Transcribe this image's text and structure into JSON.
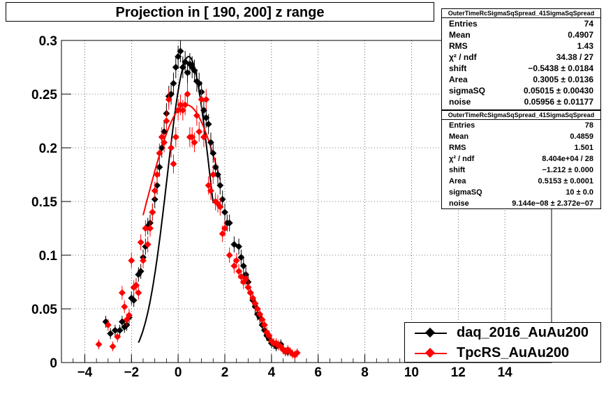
{
  "title": "Projection in [ 190, 200] z range",
  "stats_black": {
    "name": "OuterTimeRcSigmaSqSpread_41SigmaSqSpread",
    "rows": [
      {
        "k": "Entries",
        "v": "74"
      },
      {
        "k": "Mean",
        "v": "0.4907"
      },
      {
        "k": "RMS",
        "v": "1.43"
      },
      {
        "k": "χ² / ndf",
        "v": "34.38 / 27"
      },
      {
        "k": "shift",
        "v": "−0.5438 ± 0.0184"
      },
      {
        "k": "Area",
        "v": "0.3005 ± 0.0136"
      },
      {
        "k": "sigmaSQ",
        "v": "0.05015 ± 0.00430"
      },
      {
        "k": "noise",
        "v": "0.05956 ± 0.01177"
      }
    ]
  },
  "stats_red": {
    "name": "OuterTimeRcSigmaSqSpread_41SigmaSqSpread",
    "rows": [
      {
        "k": "Entries",
        "v": "78"
      },
      {
        "k": "Mean",
        "v": "0.4859"
      },
      {
        "k": "RMS",
        "v": "1.501"
      },
      {
        "k": "χ² / ndf",
        "v": "8.404e+04 / 28"
      },
      {
        "k": "shift",
        "v": "−1.212 ± 0.000"
      },
      {
        "k": "Area",
        "v": "0.5153 ± 0.0001"
      },
      {
        "k": "sigmaSQ",
        "v": "10 ± 0.0"
      },
      {
        "k": "noise",
        "v": "9.144e−08 ± 2.372e−07"
      }
    ]
  },
  "legend": [
    {
      "label": "daq_2016_AuAu200",
      "color": "#000000"
    },
    {
      "label": "TpcRS_AuAu200",
      "color": "#ff0000"
    }
  ],
  "colors": {
    "daq": "#000000",
    "tpcrs": "#ff0000"
  },
  "chart_data": {
    "type": "scatter",
    "xlim": [
      -5,
      16
    ],
    "ylim": [
      0,
      0.3
    ],
    "grid": true,
    "x_ticks": [
      "−4",
      "−2",
      "0",
      "2",
      "4",
      "6",
      "8",
      "10",
      "12",
      "14"
    ],
    "x_tick_values": [
      -4,
      -2,
      0,
      2,
      4,
      6,
      8,
      10,
      12,
      14
    ],
    "y_ticks": [
      "0",
      "0.05",
      "0.1",
      "0.15",
      "0.2",
      "0.25",
      "0.3"
    ],
    "y_tick_values": [
      0,
      0.05,
      0.1,
      0.15,
      0.2,
      0.25,
      0.3
    ],
    "series": [
      {
        "name": "daq_2016_AuAu200",
        "x": [
          -3.1,
          -2.9,
          -2.7,
          -2.5,
          -2.4,
          -2.3,
          -2.2,
          -2.1,
          -2.0,
          -1.9,
          -1.8,
          -1.7,
          -1.6,
          -1.5,
          -1.4,
          -1.3,
          -1.2,
          -1.1,
          -1.0,
          -0.9,
          -0.8,
          -0.7,
          -0.6,
          -0.5,
          -0.4,
          -0.3,
          -0.2,
          -0.1,
          0.0,
          0.1,
          0.2,
          0.3,
          0.4,
          0.5,
          0.6,
          0.7,
          0.8,
          0.9,
          1.0,
          1.1,
          1.2,
          1.3,
          1.4,
          1.5,
          1.6,
          1.7,
          1.8,
          1.9,
          2.0,
          2.1,
          2.2,
          2.4,
          2.6,
          2.7,
          2.8,
          2.9,
          3.0,
          3.1,
          3.2,
          3.3,
          3.4,
          3.5,
          3.6,
          3.7,
          3.8,
          3.9,
          4.0,
          4.1,
          4.2,
          4.3,
          4.4,
          4.5,
          4.6,
          4.7
        ],
        "y": [
          0.038,
          0.027,
          0.03,
          0.03,
          0.038,
          0.033,
          0.035,
          0.042,
          0.06,
          0.058,
          0.072,
          0.082,
          0.085,
          0.098,
          0.108,
          0.127,
          0.13,
          0.14,
          0.152,
          0.165,
          0.182,
          0.2,
          0.215,
          0.232,
          0.248,
          0.25,
          0.26,
          0.275,
          0.285,
          0.29,
          0.275,
          0.28,
          0.27,
          0.278,
          0.275,
          0.272,
          0.262,
          0.26,
          0.252,
          0.235,
          0.228,
          0.222,
          0.205,
          0.195,
          0.182,
          0.175,
          0.165,
          0.152,
          0.14,
          0.13,
          0.13,
          0.11,
          0.108,
          0.098,
          0.09,
          0.082,
          0.075,
          0.065,
          0.058,
          0.052,
          0.045,
          0.042,
          0.035,
          0.03,
          0.025,
          0.022,
          0.018,
          0.017,
          0.015,
          0.016,
          0.017,
          0.012,
          0.01,
          0.01
        ]
      },
      {
        "name": "TpcRS_AuAu200",
        "x": [
          -3.4,
          -3.0,
          -2.8,
          -2.6,
          -2.4,
          -2.3,
          -2.2,
          -2.1,
          -2.0,
          -1.9,
          -1.8,
          -1.7,
          -1.6,
          -1.5,
          -1.4,
          -1.3,
          -1.2,
          -1.1,
          -1.0,
          -0.9,
          -0.8,
          -0.7,
          -0.6,
          -0.5,
          -0.4,
          -0.3,
          -0.2,
          -0.1,
          0.0,
          0.1,
          0.2,
          0.3,
          0.4,
          0.5,
          0.6,
          0.7,
          0.8,
          0.9,
          1.0,
          1.1,
          1.2,
          1.3,
          1.4,
          1.5,
          1.6,
          1.7,
          1.8,
          1.9,
          2.0,
          2.2,
          2.4,
          2.5,
          2.6,
          2.7,
          2.8,
          2.9,
          3.0,
          3.1,
          3.2,
          3.3,
          3.4,
          3.5,
          3.6,
          3.7,
          3.8,
          3.9,
          4.0,
          4.1,
          4.2,
          4.3,
          4.4,
          4.5,
          4.6,
          4.7,
          4.8,
          4.9,
          5.0,
          5.1
        ],
        "y": [
          0.017,
          0.035,
          0.015,
          0.024,
          0.065,
          0.052,
          0.04,
          0.044,
          0.095,
          0.07,
          0.072,
          0.065,
          0.112,
          0.095,
          0.125,
          0.11,
          0.125,
          0.14,
          0.16,
          0.175,
          0.195,
          0.21,
          0.205,
          0.225,
          0.245,
          0.2,
          0.185,
          0.21,
          0.235,
          0.24,
          0.235,
          0.24,
          0.25,
          0.21,
          0.21,
          0.205,
          0.23,
          0.215,
          0.245,
          0.21,
          0.245,
          0.165,
          0.16,
          0.175,
          0.15,
          0.148,
          0.145,
          0.12,
          0.125,
          0.1,
          0.09,
          0.095,
          0.085,
          0.08,
          0.075,
          0.078,
          0.07,
          0.065,
          0.06,
          0.055,
          0.05,
          0.045,
          0.04,
          0.035,
          0.028,
          0.025,
          0.02,
          0.018,
          0.018,
          0.016,
          0.015,
          0.012,
          0.01,
          0.012,
          0.01,
          0.008,
          0.007,
          0.009
        ]
      }
    ],
    "fits": [
      {
        "name": "daq fit",
        "x0": -1.7,
        "x1": 1.5,
        "peak": 0.285,
        "mu": 0.45,
        "sigma": 0.92
      },
      {
        "name": "tpcrs fit",
        "x0": -1.5,
        "x1": 1.8,
        "peak": 0.24,
        "mu": 0.35,
        "sigma": 1.75
      }
    ]
  }
}
